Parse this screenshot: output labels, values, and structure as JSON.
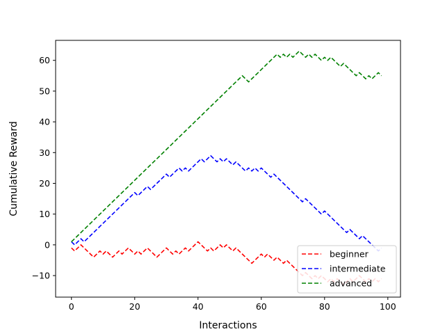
{
  "chart_data": {
    "type": "line",
    "xlabel": "Interactions",
    "ylabel": "Cumulative Reward",
    "xlim": [
      -5,
      104
    ],
    "ylim": [
      -17,
      66.5
    ],
    "xticks": [
      0,
      20,
      40,
      60,
      80,
      100
    ],
    "yticks": [
      -10,
      0,
      10,
      20,
      30,
      40,
      50,
      60
    ],
    "xtick_labels": [
      "0",
      "20",
      "40",
      "60",
      "80",
      "100"
    ],
    "ytick_labels": [
      "−10",
      "0",
      "10",
      "20",
      "30",
      "40",
      "50",
      "60"
    ],
    "grid": false,
    "legend_position": "lower-right",
    "series": [
      {
        "name": "beginner",
        "color": "#ff0000",
        "linestyle": "dashed",
        "x": [
          0,
          1,
          2,
          3,
          4,
          5,
          6,
          7,
          8,
          9,
          10,
          11,
          12,
          13,
          14,
          15,
          16,
          17,
          18,
          19,
          20,
          21,
          22,
          23,
          24,
          25,
          26,
          27,
          28,
          29,
          30,
          31,
          32,
          33,
          34,
          35,
          36,
          37,
          38,
          39,
          40,
          41,
          42,
          43,
          44,
          45,
          46,
          47,
          48,
          49,
          50,
          51,
          52,
          53,
          54,
          55,
          56,
          57,
          58,
          59,
          60,
          61,
          62,
          63,
          64,
          65,
          66,
          67,
          68,
          69,
          70,
          71,
          72,
          73,
          74,
          75,
          76,
          77,
          78,
          79,
          80,
          81,
          82,
          83,
          84,
          85,
          86,
          87,
          88,
          89,
          90,
          91,
          92,
          93,
          94,
          95,
          96,
          97,
          98
        ],
        "y": [
          -1,
          -2,
          -1,
          0,
          -1,
          -2,
          -3,
          -4,
          -3,
          -2,
          -3,
          -2,
          -3,
          -4,
          -3,
          -2,
          -3,
          -2,
          -1,
          -2,
          -3,
          -2,
          -3,
          -2,
          -1,
          -2,
          -3,
          -4,
          -3,
          -2,
          -1,
          -2,
          -3,
          -2,
          -3,
          -2,
          -1,
          -2,
          -1,
          0,
          1,
          0,
          -1,
          -2,
          -1,
          -2,
          -1,
          0,
          -1,
          0,
          -1,
          -2,
          -1,
          -2,
          -3,
          -4,
          -5,
          -6,
          -5,
          -4,
          -3,
          -4,
          -3,
          -4,
          -5,
          -4,
          -5,
          -6,
          -5,
          -6,
          -7,
          -8,
          -9,
          -10,
          -9,
          -10,
          -11,
          -10,
          -11,
          -10,
          -11,
          -12,
          -11,
          -12,
          -11,
          -12,
          -13,
          -12,
          -11,
          -12,
          -11,
          -10,
          -11,
          -12,
          -11,
          -12,
          -11,
          -12,
          -11
        ]
      },
      {
        "name": "intermediate",
        "color": "#0000ff",
        "linestyle": "dashed",
        "x": [
          0,
          1,
          2,
          3,
          4,
          5,
          6,
          7,
          8,
          9,
          10,
          11,
          12,
          13,
          14,
          15,
          16,
          17,
          18,
          19,
          20,
          21,
          22,
          23,
          24,
          25,
          26,
          27,
          28,
          29,
          30,
          31,
          32,
          33,
          34,
          35,
          36,
          37,
          38,
          39,
          40,
          41,
          42,
          43,
          44,
          45,
          46,
          47,
          48,
          49,
          50,
          51,
          52,
          53,
          54,
          55,
          56,
          57,
          58,
          59,
          60,
          61,
          62,
          63,
          64,
          65,
          66,
          67,
          68,
          69,
          70,
          71,
          72,
          73,
          74,
          75,
          76,
          77,
          78,
          79,
          80,
          81,
          82,
          83,
          84,
          85,
          86,
          87,
          88,
          89,
          90,
          91,
          92,
          93,
          94,
          95,
          96,
          97,
          98
        ],
        "y": [
          1,
          0,
          1,
          2,
          1,
          2,
          3,
          4,
          5,
          6,
          7,
          8,
          9,
          10,
          11,
          12,
          13,
          14,
          15,
          16,
          17,
          16,
          17,
          18,
          19,
          18,
          19,
          20,
          21,
          22,
          23,
          22,
          23,
          24,
          25,
          24,
          25,
          24,
          25,
          26,
          27,
          28,
          27,
          28,
          29,
          28,
          27,
          28,
          27,
          28,
          27,
          26,
          27,
          26,
          25,
          24,
          25,
          24,
          25,
          24,
          25,
          24,
          23,
          22,
          23,
          22,
          21,
          20,
          19,
          18,
          17,
          16,
          15,
          14,
          15,
          14,
          13,
          12,
          11,
          10,
          11,
          10,
          9,
          8,
          7,
          6,
          5,
          4,
          5,
          4,
          3,
          2,
          3,
          2,
          1,
          0,
          -1,
          -2,
          -1
        ]
      },
      {
        "name": "advanced",
        "color": "#008000",
        "linestyle": "dashed",
        "x": [
          0,
          1,
          2,
          3,
          4,
          5,
          6,
          7,
          8,
          9,
          10,
          11,
          12,
          13,
          14,
          15,
          16,
          17,
          18,
          19,
          20,
          21,
          22,
          23,
          24,
          25,
          26,
          27,
          28,
          29,
          30,
          31,
          32,
          33,
          34,
          35,
          36,
          37,
          38,
          39,
          40,
          41,
          42,
          43,
          44,
          45,
          46,
          47,
          48,
          49,
          50,
          51,
          52,
          53,
          54,
          55,
          56,
          57,
          58,
          59,
          60,
          61,
          62,
          63,
          64,
          65,
          66,
          67,
          68,
          69,
          70,
          71,
          72,
          73,
          74,
          75,
          76,
          77,
          78,
          79,
          80,
          81,
          82,
          83,
          84,
          85,
          86,
          87,
          88,
          89,
          90,
          91,
          92,
          93,
          94,
          95,
          96,
          97,
          98
        ],
        "y": [
          1,
          2,
          3,
          4,
          5,
          6,
          7,
          8,
          9,
          10,
          11,
          12,
          13,
          14,
          15,
          16,
          17,
          18,
          19,
          20,
          21,
          22,
          23,
          24,
          25,
          26,
          27,
          28,
          29,
          30,
          31,
          32,
          33,
          34,
          35,
          36,
          37,
          38,
          39,
          40,
          41,
          42,
          43,
          44,
          45,
          46,
          47,
          48,
          49,
          50,
          51,
          52,
          53,
          54,
          55,
          54,
          53,
          54,
          55,
          56,
          57,
          58,
          59,
          60,
          61,
          62,
          61,
          62,
          61,
          62,
          61,
          62,
          63,
          62,
          61,
          62,
          61,
          62,
          61,
          60,
          61,
          60,
          61,
          60,
          59,
          58,
          59,
          58,
          57,
          56,
          55,
          56,
          55,
          54,
          55,
          54,
          55,
          56,
          55
        ]
      }
    ]
  }
}
